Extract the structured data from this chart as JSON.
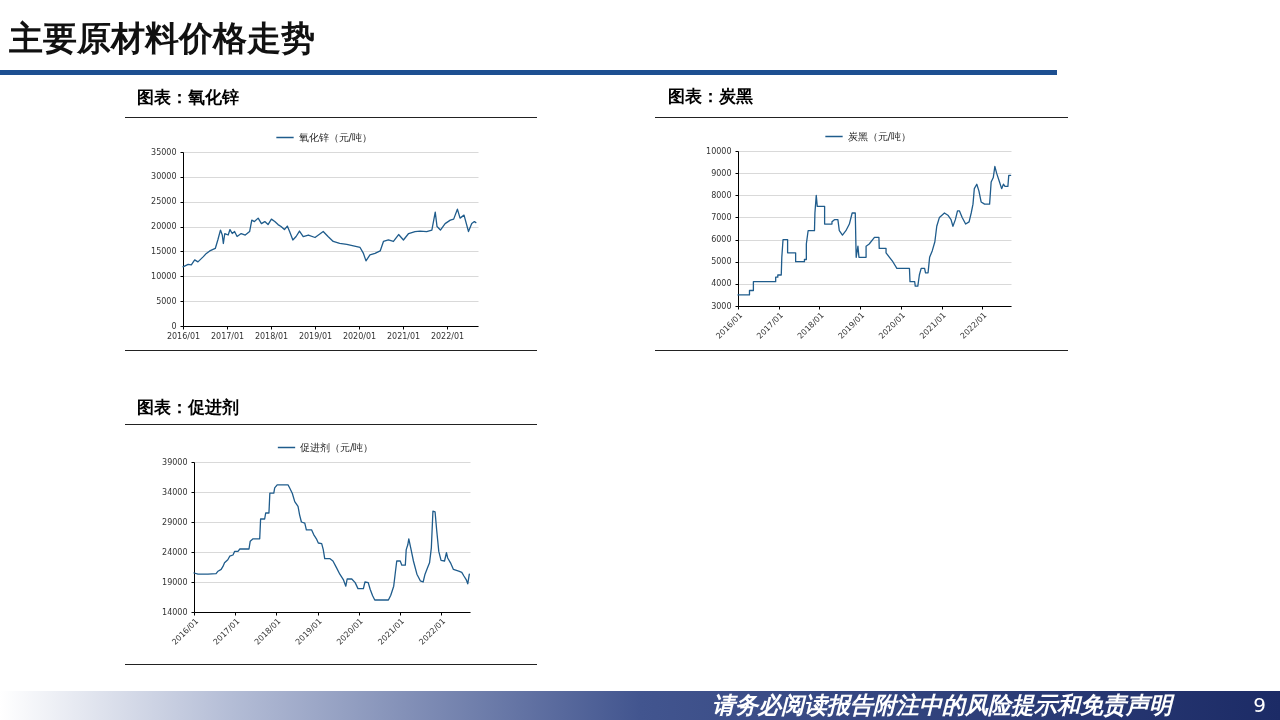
{
  "chart_data": [
    {
      "type": "other",
      "title": "主要原材料价格走势",
      "annotations": [
        "请务必阅读报告附注中的风险提示和免责声明",
        "9"
      ]
    },
    {
      "type": "line",
      "title": "图表：氧化锌",
      "x": [
        "2016-01-01",
        "2016-02-13",
        "2016-03-10",
        "2016-04-07",
        "2016-05-04",
        "2016-06-16",
        "2016-07-13",
        "2016-08-10",
        "2016-09-25",
        "2016-10-16",
        "2016-11-07",
        "2016-11-22",
        "2016-12-01",
        "2016-12-13",
        "2017-01-10",
        "2017-01-25",
        "2017-02-13",
        "2017-03-04",
        "2017-03-25",
        "2017-04-28",
        "2017-06-01",
        "2017-07-07",
        "2017-07-25",
        "2017-08-16",
        "2017-09-16",
        "2017-10-13",
        "2017-11-10",
        "2017-12-07",
        "2018-01-04",
        "2018-02-01",
        "2018-02-28",
        "2018-03-25",
        "2018-04-22",
        "2018-05-16",
        "2018-06-04",
        "2018-07-01",
        "2018-07-28",
        "2018-08-25",
        "2018-09-25",
        "2018-11-07",
        "2019-01-01",
        "2019-03-10",
        "2019-04-19",
        "2019-06-01",
        "2019-07-25",
        "2019-09-22",
        "2019-11-16",
        "2020-01-10",
        "2020-02-07",
        "2020-02-28",
        "2020-04-01",
        "2020-05-13",
        "2020-06-25",
        "2020-07-22",
        "2020-09-01",
        "2020-10-13",
        "2020-11-25",
        "2021-01-04",
        "2021-02-16",
        "2021-04-10",
        "2021-05-22",
        "2021-07-16",
        "2021-08-28",
        "2021-09-25",
        "2021-10-10",
        "2021-11-07",
        "2021-12-16",
        "2022-01-28",
        "2022-02-25",
        "2022-03-28",
        "2022-04-19",
        "2022-05-22",
        "2022-06-28",
        "2022-07-25",
        "2022-08-16",
        "2022-08-28"
      ],
      "series": [
        {
          "name": "氧化锌（元/吨）",
          "color": "#1f5c8c",
          "values": [
            11900,
            12400,
            12300,
            13300,
            12900,
            13900,
            14600,
            15100,
            15600,
            17300,
            19300,
            18300,
            16600,
            18600,
            18300,
            19400,
            18600,
            19000,
            18000,
            18600,
            18300,
            19000,
            21300,
            21000,
            21700,
            20600,
            21000,
            20400,
            21500,
            21000,
            20400,
            20000,
            19400,
            20100,
            19000,
            17300,
            18000,
            19100,
            18000,
            18300,
            17800,
            19000,
            18000,
            17000,
            16600,
            16400,
            16100,
            15800,
            14600,
            13100,
            14300,
            14600,
            15100,
            17000,
            17300,
            17000,
            18400,
            17300,
            18600,
            19000,
            19100,
            19000,
            19300,
            22900,
            20000,
            19300,
            20600,
            21300,
            21500,
            23500,
            21700,
            22300,
            19000,
            20600,
            21000,
            20800
          ]
        }
      ],
      "xlim": [
        "2016-01-01",
        "2022-09-15"
      ],
      "xticks": [
        {
          "value": "2016-01",
          "label": "2016/01"
        },
        {
          "value": "2017-01",
          "label": "2017/01"
        },
        {
          "value": "2018-01",
          "label": "2018/01"
        },
        {
          "value": "2019-01",
          "label": "2019/01"
        },
        {
          "value": "2020-01",
          "label": "2020/01"
        },
        {
          "value": "2021-01",
          "label": "2021/01"
        },
        {
          "value": "2022-01",
          "label": "2022/01"
        }
      ],
      "ylim": [
        0,
        35000
      ],
      "yticks": [
        0,
        5000,
        10000,
        15000,
        20000,
        25000,
        30000,
        35000
      ],
      "grid": "y",
      "legend": "top"
    },
    {
      "type": "line",
      "title": "图表：炭黑",
      "x": [
        "2016-01-01",
        "2016-04-13",
        "2016-04-13",
        "2016-05-18",
        "2016-05-18",
        "2016-12-04",
        "2016-12-04",
        "2016-12-23",
        "2016-12-23",
        "2017-01-23",
        "2017-01-28",
        "2017-02-08",
        "2017-03-21",
        "2017-03-21",
        "2017-06-01",
        "2017-06-01",
        "2017-08-19",
        "2017-08-19",
        "2017-09-05",
        "2017-09-05",
        "2017-09-21",
        "2017-11-17",
        "2017-11-21",
        "2017-12-03",
        "2017-12-12",
        "2018-02-16",
        "2018-02-16",
        "2018-04-23",
        "2018-04-23",
        "2018-05-15",
        "2018-06-15",
        "2018-06-28",
        "2018-07-26",
        "2018-08-26",
        "2018-09-26",
        "2018-10-21",
        "2018-11-18",
        "2018-11-26",
        "2018-12-12",
        "2018-12-21",
        "2019-02-23",
        "2019-02-23",
        "2019-03-23",
        "2019-05-09",
        "2019-06-18",
        "2019-06-21",
        "2019-08-21",
        "2019-08-21",
        "2019-09-21",
        "2019-10-21",
        "2019-11-26",
        "2020-03-18",
        "2020-03-23",
        "2020-05-04",
        "2020-05-09",
        "2020-06-01",
        "2020-06-15",
        "2020-07-01",
        "2020-08-01",
        "2020-08-09",
        "2020-09-01",
        "2020-09-15",
        "2020-10-09",
        "2020-11-01",
        "2020-11-18",
        "2020-12-12",
        "2021-01-26",
        "2021-02-26",
        "2021-03-26",
        "2021-04-12",
        "2021-05-04",
        "2021-05-23",
        "2021-06-09",
        "2021-07-04",
        "2021-08-04",
        "2021-09-04",
        "2021-09-23",
        "2021-10-09",
        "2021-10-21",
        "2021-11-12",
        "2021-12-01",
        "2021-12-21",
        "2022-01-21",
        "2022-03-07",
        "2022-03-21",
        "2022-04-09",
        "2022-04-23",
        "2022-05-09",
        "2022-06-04",
        "2022-06-23",
        "2022-07-09",
        "2022-07-23",
        "2022-08-18",
        "2022-08-26",
        "2022-09-12"
      ],
      "series": [
        {
          "name": "炭黑（元/吨）",
          "color": "#1f5c8c",
          "values": [
            3500,
            3500,
            3700,
            3700,
            4100,
            4100,
            4300,
            4300,
            4400,
            4400,
            5200,
            6000,
            6000,
            5400,
            5400,
            5000,
            5000,
            5100,
            5100,
            5800,
            6400,
            6400,
            7200,
            8000,
            7500,
            7500,
            6700,
            6700,
            6800,
            6900,
            6900,
            6400,
            6200,
            6400,
            6700,
            7200,
            7200,
            5200,
            5700,
            5200,
            5200,
            5700,
            5800,
            6100,
            6100,
            5600,
            5600,
            5400,
            5200,
            5000,
            4700,
            4700,
            4100,
            4100,
            3900,
            3900,
            4400,
            4700,
            4700,
            4500,
            4500,
            5200,
            5500,
            5900,
            6600,
            7000,
            7200,
            7100,
            6900,
            6600,
            6900,
            7300,
            7300,
            7000,
            6700,
            6800,
            7200,
            7600,
            8300,
            8500,
            8200,
            7700,
            7600,
            7600,
            8600,
            8800,
            9300,
            9000,
            8600,
            8300,
            8500,
            8400,
            8400,
            8900,
            8900
          ]
        }
      ],
      "xlim": [
        "2016-01-01",
        "2022-09-15"
      ],
      "xticks": [
        {
          "value": "2016-01",
          "label": "2016/01"
        },
        {
          "value": "2017-01",
          "label": "2017/01"
        },
        {
          "value": "2018-01",
          "label": "2018/01"
        },
        {
          "value": "2019-01",
          "label": "2019/01"
        },
        {
          "value": "2020-01",
          "label": "2020/01"
        },
        {
          "value": "2021-01",
          "label": "2021/01"
        },
        {
          "value": "2022-01",
          "label": "2022/01"
        }
      ],
      "ylim": [
        3000,
        10000
      ],
      "yticks": [
        3000,
        4000,
        5000,
        6000,
        7000,
        8000,
        9000,
        10000
      ],
      "grid": "y",
      "legend": "top"
    },
    {
      "type": "line",
      "title": "图表：促进剂",
      "x": [
        "2016-01-01",
        "2016-02-06",
        "2016-05-04",
        "2016-07-15",
        "2016-08-01",
        "2016-08-29",
        "2016-09-14",
        "2016-09-28",
        "2016-10-27",
        "2016-11-13",
        "2016-12-12",
        "2016-12-26",
        "2017-01-25",
        "2017-02-11",
        "2017-05-03",
        "2017-05-14",
        "2017-06-08",
        "2017-08-06",
        "2017-08-14",
        "2017-09-19",
        "2017-09-28",
        "2017-10-27",
        "2017-11-04",
        "2017-12-09",
        "2017-12-17",
        "2018-01-08",
        "2018-04-14",
        "2018-04-28",
        "2018-05-22",
        "2018-06-13",
        "2018-07-12",
        "2018-07-26",
        "2018-08-11",
        "2018-09-10",
        "2018-09-24",
        "2018-11-09",
        "2018-11-28",
        "2018-12-22",
        "2019-01-08",
        "2019-02-07",
        "2019-02-21",
        "2019-03-06",
        "2019-04-19",
        "2019-05-18",
        "2019-06-18",
        "2019-07-18",
        "2019-08-18",
        "2019-09-09",
        "2019-09-21",
        "2019-11-01",
        "2019-12-01",
        "2019-12-26",
        "2020-02-12",
        "2020-02-26",
        "2020-03-26",
        "2020-04-12",
        "2020-05-04",
        "2020-05-23",
        "2020-06-23",
        "2020-09-21",
        "2020-10-12",
        "2020-11-07",
        "2020-11-21",
        "2020-12-04",
        "2021-01-04",
        "2021-01-18",
        "2021-02-18",
        "2021-02-26",
        "2021-03-12",
        "2021-03-21",
        "2021-04-07",
        "2021-05-01",
        "2021-06-01",
        "2021-07-01",
        "2021-07-26",
        "2021-08-12",
        "2021-09-04",
        "2021-09-21",
        "2021-10-07",
        "2021-10-21",
        "2021-11-09",
        "2021-11-23",
        "2021-12-12",
        "2022-01-01",
        "2022-02-01",
        "2022-02-18",
        "2022-03-01",
        "2022-03-26",
        "2022-04-21",
        "2022-06-07",
        "2022-07-04",
        "2022-07-23",
        "2022-08-12",
        "2022-08-26",
        "2022-09-09"
      ],
      "series": [
        {
          "name": "促进剂（元/吨）",
          "color": "#1f5c8c",
          "values": [
            20500,
            20300,
            20300,
            20400,
            20800,
            21100,
            21600,
            22200,
            22700,
            23300,
            23500,
            24100,
            24100,
            24500,
            24500,
            25800,
            26200,
            26200,
            29500,
            29500,
            30500,
            30500,
            33800,
            33800,
            34700,
            35200,
            35200,
            34700,
            33800,
            32400,
            31600,
            30200,
            29000,
            28800,
            27700,
            27700,
            26900,
            26200,
            25500,
            25400,
            24400,
            22900,
            22900,
            22500,
            21400,
            20300,
            19400,
            18300,
            19500,
            19500,
            18900,
            17900,
            17900,
            19000,
            18900,
            17800,
            16700,
            16000,
            16000,
            16000,
            16800,
            18300,
            20500,
            22500,
            22500,
            21800,
            21800,
            24400,
            25200,
            26200,
            24700,
            22500,
            20300,
            19200,
            19000,
            20300,
            21400,
            22200,
            24700,
            30800,
            30700,
            27700,
            24100,
            22600,
            22500,
            23900,
            23000,
            22200,
            21100,
            20800,
            20600,
            20000,
            19400,
            18700,
            20300
          ]
        }
      ],
      "xlim": [
        "2016-01-01",
        "2022-09-15"
      ],
      "xticks": [
        {
          "value": "2016-01",
          "label": "2016/01"
        },
        {
          "value": "2017-01",
          "label": "2017/01"
        },
        {
          "value": "2018-01",
          "label": "2018/01"
        },
        {
          "value": "2019-01",
          "label": "2019/01"
        },
        {
          "value": "2020-01",
          "label": "2020/01"
        },
        {
          "value": "2021-01",
          "label": "2021/01"
        },
        {
          "value": "2022-01",
          "label": "2022/01"
        }
      ],
      "ylim": [
        14000,
        39000
      ],
      "yticks": [
        14000,
        19000,
        24000,
        29000,
        34000,
        39000
      ],
      "grid": "y",
      "legend": "top"
    }
  ]
}
